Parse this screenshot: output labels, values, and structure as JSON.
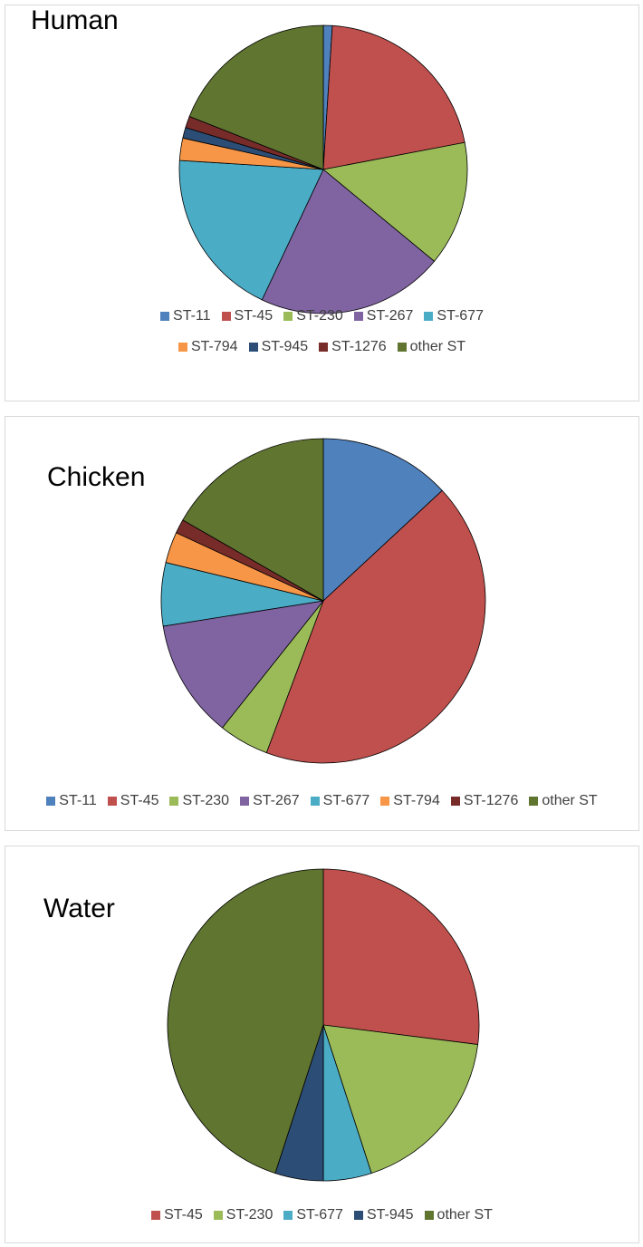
{
  "chart_data": [
    {
      "type": "pie",
      "title": "Human",
      "categories": [
        "ST-11",
        "ST-45",
        "ST-230",
        "ST-267",
        "ST-677",
        "ST-794",
        "ST-945",
        "ST-1276",
        "other ST"
      ],
      "values": [
        1,
        21,
        14,
        21,
        19,
        2.5,
        1.2,
        1.3,
        19
      ],
      "colors": [
        "#4f81bd",
        "#c0504d",
        "#9bbb59",
        "#8064a2",
        "#4bacc6",
        "#f79646",
        "#2c4d75",
        "#772c2a",
        "#5f7530"
      ],
      "legend": "bottom"
    },
    {
      "type": "pie",
      "title": "Chicken",
      "categories": [
        "ST-11",
        "ST-45",
        "ST-230",
        "ST-267",
        "ST-677",
        "ST-794",
        "ST-1276",
        "other ST"
      ],
      "values": [
        13.1,
        42.6,
        5,
        11.8,
        6.3,
        3.1,
        1.4,
        16.7
      ],
      "colors": [
        "#4f81bd",
        "#c0504d",
        "#9bbb59",
        "#8064a2",
        "#4bacc6",
        "#f79646",
        "#772c2a",
        "#5f7530"
      ],
      "legend": "bottom"
    },
    {
      "type": "pie",
      "title": "Water",
      "categories": [
        "ST-45",
        "ST-230",
        "ST-677",
        "ST-945",
        "other ST"
      ],
      "values": [
        27,
        18,
        5,
        5,
        45
      ],
      "colors": [
        "#c0504d",
        "#9bbb59",
        "#4bacc6",
        "#2c4d75",
        "#5f7530"
      ],
      "legend": "bottom"
    }
  ]
}
